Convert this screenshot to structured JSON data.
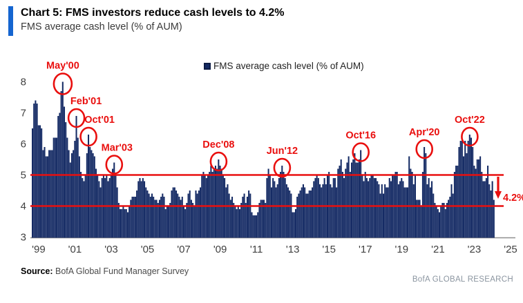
{
  "header": {
    "title": "Chart 5: FMS investors reduce cash levels to 4.2%",
    "subtitle": "FMS average cash level (% of AUM)",
    "accent_color": "#1565d0"
  },
  "legend": {
    "label": "FMS average cash level (% of AUM)",
    "marker_color": "#142a64"
  },
  "chart_data": {
    "type": "bar",
    "title": "FMS average cash level (% of AUM)",
    "frequency": "monthly",
    "start_month": "1998-09",
    "end_month": "2024-02",
    "ylim": [
      3,
      8.4
    ],
    "yticks": [
      3,
      4,
      5,
      6,
      7,
      8
    ],
    "xticks": [
      "'99",
      "'01",
      "'03",
      "'05",
      "'07",
      "'09",
      "'11",
      "'13",
      "'15",
      "'17",
      "'19",
      "'21",
      "'23",
      "'25"
    ],
    "xtick_years": [
      1999,
      2001,
      2003,
      2005,
      2007,
      2009,
      2011,
      2013,
      2015,
      2017,
      2019,
      2021,
      2023,
      2025
    ],
    "reference_lines": [
      5,
      4
    ],
    "grid": false,
    "legend_position": "top-center",
    "bar_color": "#142a64",
    "annotation_color": "#e90f0e",
    "axis_color": "#8f8f8f",
    "values": [
      6.5,
      7.3,
      7.4,
      7.3,
      6.6,
      6.6,
      6.5,
      5.8,
      5.9,
      5.6,
      5.6,
      5.8,
      5.8,
      5.8,
      6.2,
      6.2,
      6.2,
      6.9,
      7.0,
      7.7,
      8.0,
      7.2,
      6.7,
      6.2,
      5.8,
      5.4,
      5.7,
      5.8,
      6.1,
      6.9,
      6.2,
      5.6,
      5.1,
      4.9,
      4.8,
      5.0,
      5.7,
      6.3,
      5.9,
      5.8,
      5.7,
      5.6,
      5.2,
      5.0,
      4.8,
      4.6,
      4.9,
      5.0,
      4.9,
      5.0,
      4.8,
      4.9,
      5.0,
      5.2,
      5.4,
      5.0,
      4.6,
      4.1,
      3.9,
      3.9,
      4.0,
      3.9,
      3.9,
      3.8,
      4.0,
      4.2,
      4.3,
      4.3,
      4.3,
      4.5,
      4.8,
      4.9,
      4.8,
      4.9,
      4.8,
      4.6,
      4.5,
      4.4,
      4.3,
      4.4,
      4.3,
      4.2,
      4.2,
      4.1,
      4.2,
      4.3,
      4.4,
      4.3,
      3.9,
      4.0,
      4.0,
      4.1,
      4.5,
      4.6,
      4.6,
      4.5,
      4.4,
      4.3,
      4.2,
      4.3,
      4.0,
      3.9,
      4.1,
      4.4,
      4.5,
      4.2,
      4.1,
      4.0,
      4.5,
      4.4,
      4.5,
      4.6,
      5.0,
      5.1,
      5.0,
      4.9,
      5.0,
      5.1,
      5.3,
      5.1,
      5.2,
      5.3,
      5.2,
      5.5,
      5.3,
      5.2,
      5.0,
      4.9,
      4.6,
      4.7,
      4.4,
      4.2,
      4.3,
      4.1,
      4.0,
      3.9,
      4.0,
      3.9,
      4.1,
      4.3,
      4.4,
      4.1,
      4.3,
      4.5,
      4.4,
      3.8,
      3.7,
      3.7,
      3.7,
      3.8,
      4.1,
      4.2,
      4.2,
      4.2,
      4.1,
      4.9,
      5.2,
      5.0,
      4.6,
      4.9,
      4.8,
      4.6,
      4.7,
      4.9,
      5.1,
      5.3,
      5.1,
      4.9,
      4.7,
      4.6,
      4.5,
      4.4,
      3.8,
      3.8,
      3.9,
      4.3,
      4.4,
      4.5,
      4.6,
      4.7,
      4.6,
      4.4,
      4.4,
      4.5,
      4.5,
      4.6,
      4.8,
      4.9,
      5.0,
      4.9,
      4.7,
      4.6,
      4.7,
      4.9,
      4.7,
      5.0,
      5.1,
      4.7,
      4.6,
      4.9,
      4.9,
      4.6,
      5.2,
      5.3,
      5.5,
      5.1,
      4.9,
      5.2,
      5.4,
      5.6,
      5.1,
      5.4,
      5.5,
      5.7,
      5.4,
      5.4,
      5.5,
      5.8,
      5.0,
      4.8,
      5.1,
      4.9,
      4.8,
      4.9,
      5.0,
      5.0,
      4.9,
      4.9,
      4.8,
      4.7,
      4.4,
      4.7,
      4.4,
      4.7,
      4.6,
      4.6,
      4.9,
      4.8,
      5.0,
      5.0,
      5.1,
      5.1,
      4.7,
      4.8,
      4.9,
      4.8,
      4.6,
      4.6,
      4.6,
      5.6,
      5.2,
      5.1,
      4.7,
      5.0,
      4.2,
      4.2,
      4.2,
      4.0,
      5.1,
      5.9,
      5.7,
      4.7,
      4.9,
      4.6,
      4.8,
      4.4,
      4.1,
      4.0,
      3.9,
      3.8,
      4.0,
      4.1,
      4.1,
      3.9,
      4.1,
      4.2,
      4.3,
      4.7,
      4.4,
      5.1,
      5.3,
      5.3,
      5.9,
      6.1,
      6.1,
      5.6,
      6.1,
      5.7,
      6.1,
      6.3,
      6.2,
      5.9,
      5.3,
      5.2,
      5.5,
      5.5,
      5.6,
      5.1,
      4.8,
      4.8,
      4.9,
      5.3,
      4.7,
      4.5,
      4.8,
      4.2
    ],
    "annotations": [
      {
        "label": "May'00",
        "month": "2000-05",
        "value": 8.0
      },
      {
        "label": "Feb'01",
        "month": "2001-02",
        "value": 6.9
      },
      {
        "label": "Oct'01",
        "month": "2001-10",
        "value": 6.3
      },
      {
        "label": "Mar'03",
        "month": "2003-03",
        "value": 5.4
      },
      {
        "label": "Dec'08",
        "month": "2008-12",
        "value": 5.5
      },
      {
        "label": "Jun'12",
        "month": "2012-06",
        "value": 5.3
      },
      {
        "label": "Oct'16",
        "month": "2016-10",
        "value": 5.8
      },
      {
        "label": "Apr'20",
        "month": "2020-04",
        "value": 5.9
      },
      {
        "label": "Oct'22",
        "month": "2022-10",
        "value": 6.3
      }
    ],
    "end_annotation": {
      "label": "4.2%",
      "value": 4.2,
      "arrow": "down"
    }
  },
  "footer": {
    "source_label": "Source:",
    "source_text": "BofA Global Fund Manager Survey",
    "brand": "BofA GLOBAL RESEARCH"
  }
}
